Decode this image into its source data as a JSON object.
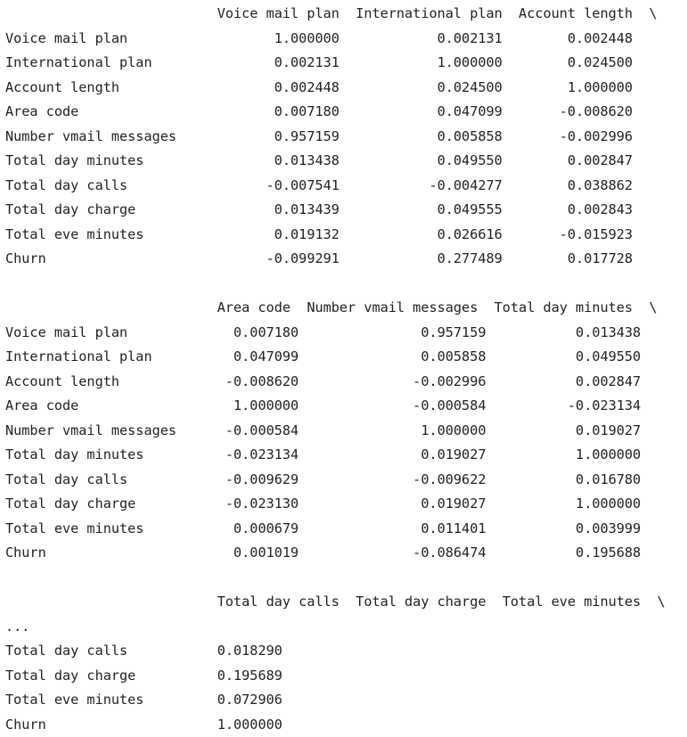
{
  "output": {
    "lines": [
      "                          Voice mail plan  International plan  Account length  \\",
      "Voice mail plan                  1.000000            0.002131        0.002448   ",
      "International plan               0.002131            1.000000        0.024500   ",
      "Account length                   0.002448            0.024500        1.000000   ",
      "Area code                        0.007180            0.047099       -0.008620   ",
      "Number vmail messages            0.957159            0.005858       -0.002996   ",
      "Total day minutes                0.013438            0.049550        0.002847   ",
      "Total day calls                 -0.007541           -0.004277        0.038862   ",
      "Total day charge                 0.013439            0.049555        0.002843   ",
      "Total eve minutes                0.019132            0.026616       -0.015923   ",
      "Churn                           -0.099291            0.277489        0.017728   ",
      "",
      "                          Area code  Number vmail messages  Total day minutes  \\",
      "Voice mail plan             0.007180               0.957159           0.013438   ",
      "International plan          0.047099               0.005858           0.049550   ",
      "Account length             -0.008620              -0.002996           0.002847   ",
      "Area code                   1.000000              -0.000584          -0.023134   ",
      "Number vmail messages      -0.000584               1.000000           0.019027   ",
      "Total day minutes          -0.023134               0.019027           1.000000   ",
      "Total day calls            -0.009629              -0.009622           0.016780   ",
      "Total day charge           -0.023130               0.019027           1.000000   ",
      "Total eve minutes           0.000679               0.011401           0.003999   ",
      "Churn                       0.001019              -0.086474           0.195688   ",
      "",
      "                          Total day calls  Total day charge  Total eve minutes  \\",
      "...",
      "Total day calls           0.018290  ",
      "Total day charge          0.195689  ",
      "Total eve minutes         0.072906  ",
      "Churn                     1.000000  "
    ]
  }
}
